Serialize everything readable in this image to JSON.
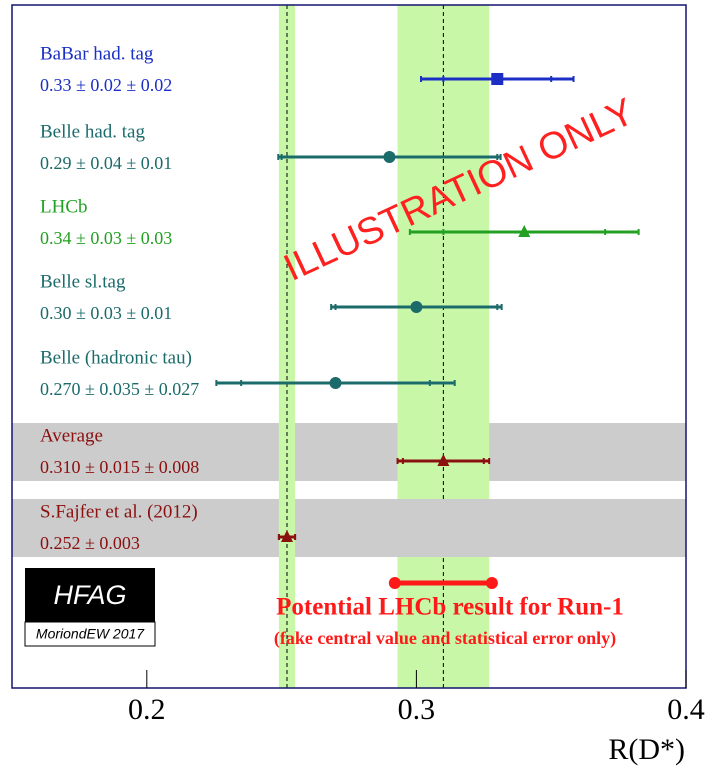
{
  "chart_data": {
    "type": "forest",
    "xlabel": "R(D*)",
    "xlim": [
      0.15,
      0.4
    ],
    "xticks": [
      0.2,
      0.3,
      0.4
    ],
    "measurements": [
      {
        "name": "BaBar had. tag",
        "label": "0.33 ± 0.02 ± 0.02",
        "value": 0.33,
        "stat": 0.02,
        "syst": 0.02,
        "color": "#1b2fc4",
        "marker": "square"
      },
      {
        "name": "Belle had. tag",
        "label": "0.29 ± 0.04 ± 0.01",
        "value": 0.29,
        "stat": 0.04,
        "syst": 0.01,
        "color": "#1c6b6b",
        "marker": "circle"
      },
      {
        "name": "LHCb",
        "label": "0.34 ± 0.03 ± 0.03",
        "value": 0.34,
        "stat": 0.03,
        "syst": 0.03,
        "color": "#22a022",
        "marker": "triangle"
      },
      {
        "name": "Belle sl.tag",
        "label": "0.30 ± 0.03 ± 0.01",
        "value": 0.3,
        "stat": 0.03,
        "syst": 0.01,
        "color": "#1c6b6b",
        "marker": "circle"
      },
      {
        "name": "Belle (hadronic tau)",
        "label": "0.270 ± 0.035 ± 0.027",
        "value": 0.27,
        "stat": 0.035,
        "syst": 0.027,
        "color": "#1c6b6b",
        "marker": "circle"
      },
      {
        "name": "Average",
        "label": "0.310 ± 0.015 ± 0.008",
        "value": 0.31,
        "stat": 0.015,
        "syst": 0.008,
        "color": "#8b1010",
        "marker": "triangle",
        "band": true
      },
      {
        "name": "S.Fajfer et al. (2012)",
        "label": "0.252 ± 0.003",
        "value": 0.252,
        "stat": 0.003,
        "syst": 0,
        "color": "#8b1010",
        "marker": "triangle",
        "band": true
      }
    ],
    "projection": {
      "title": "Potential LHCb result for Run-1",
      "subtitle": "(fake central value and statistical error only)",
      "value": 0.31,
      "stat": 0.018,
      "color": "#ff1a1a"
    },
    "watermark": "ILLUSTRATION ONLY",
    "logo": "HFAG",
    "logo_sub": "MoriondEW 2017"
  }
}
